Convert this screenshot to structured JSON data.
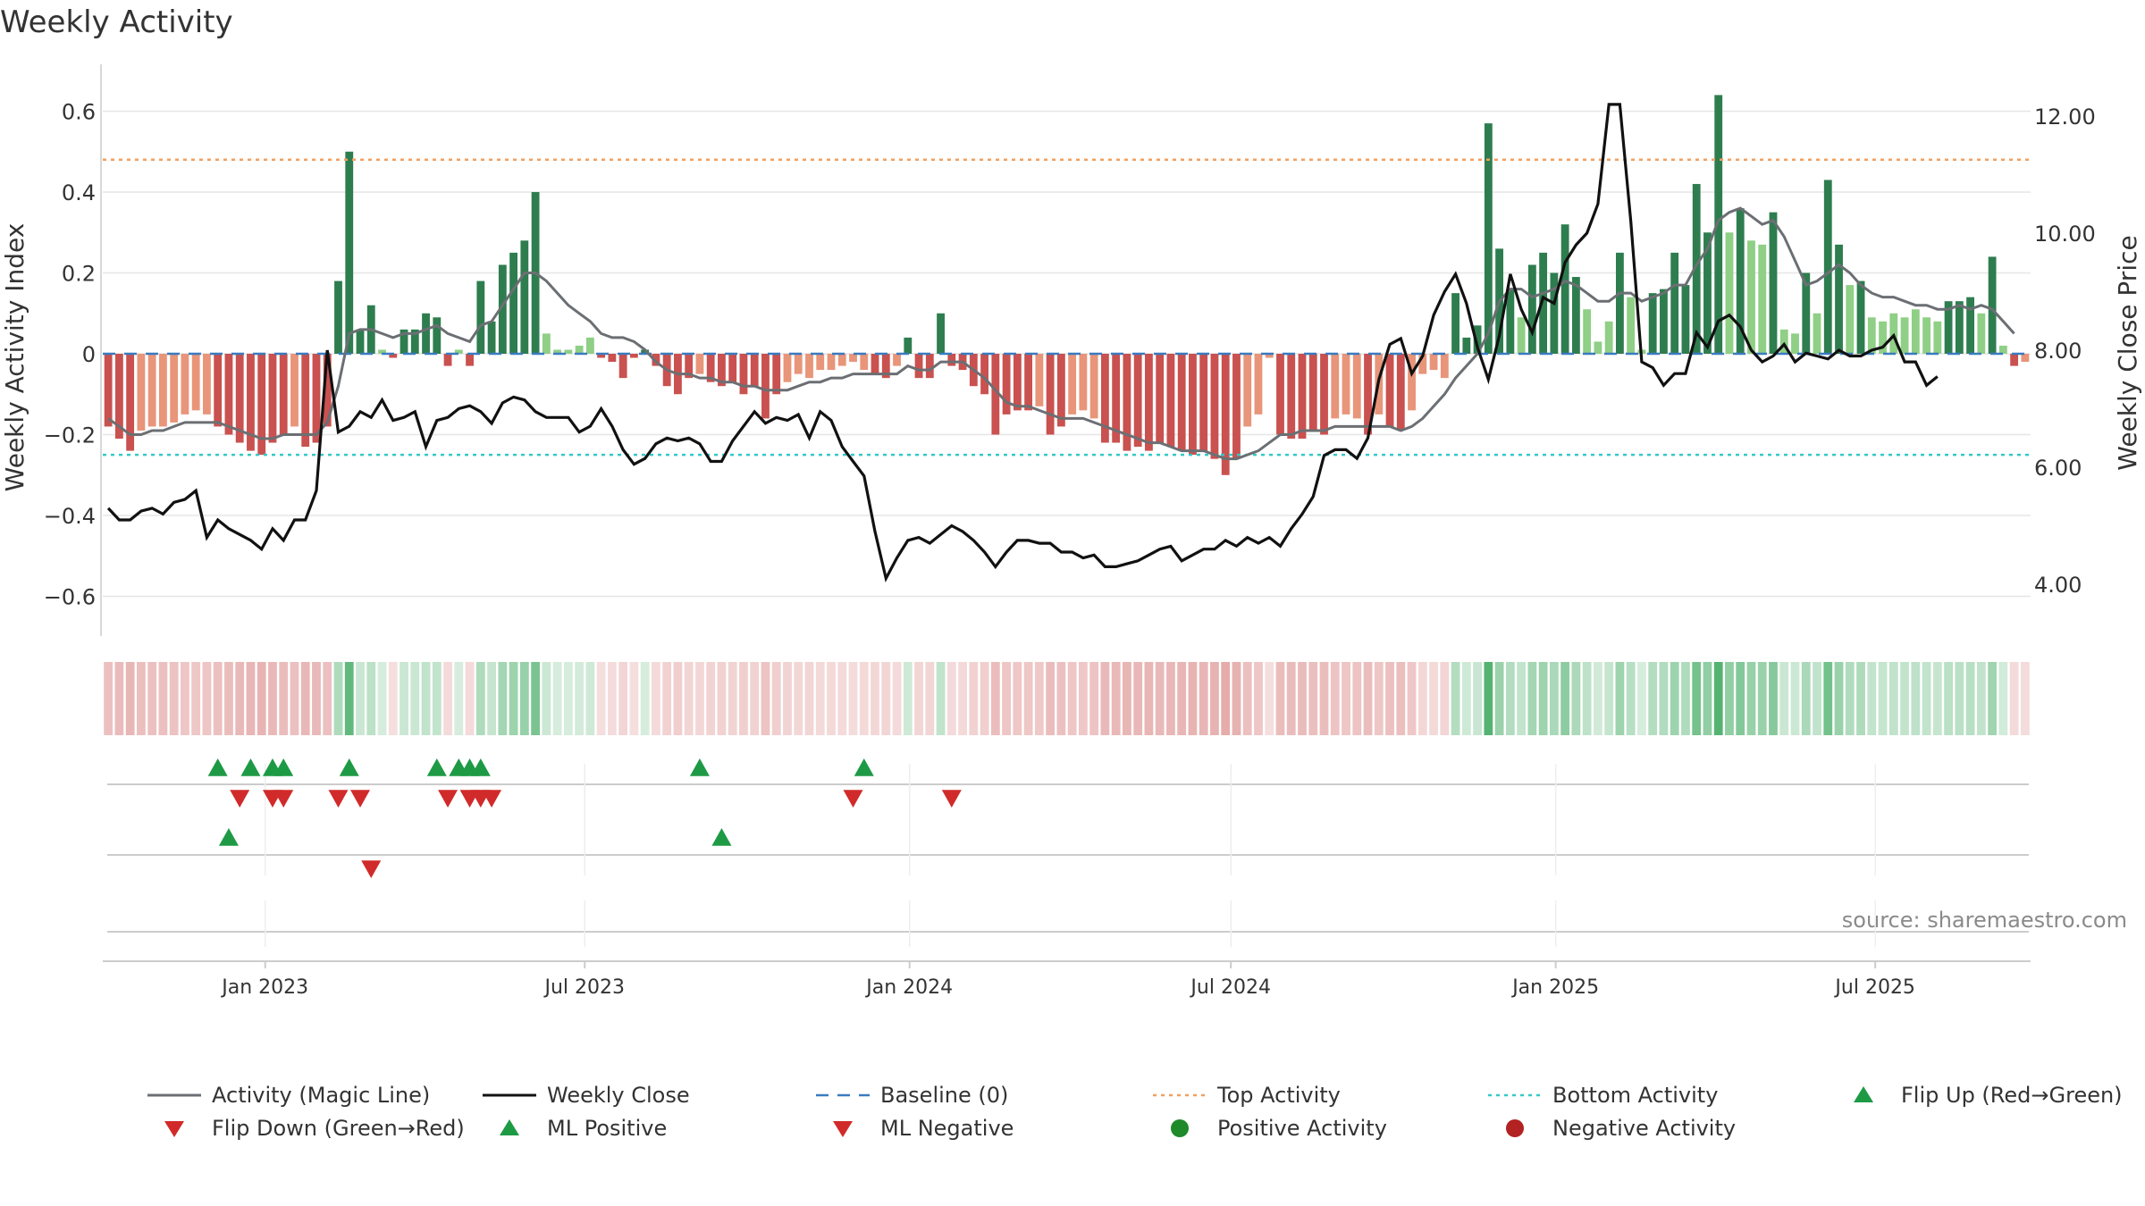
{
  "chart_data": {
    "type": "bar",
    "title": "Weekly Activity",
    "ylabel": "Weekly Activity Index",
    "y2label": "Weekly Close Price",
    "ylim": [
      -0.7,
      0.7
    ],
    "y2lim": [
      2.8,
      13.2
    ],
    "yticks": [
      0.6,
      0.4,
      0.2,
      0,
      -0.2,
      -0.4,
      -0.6
    ],
    "ytick_labels": [
      "0.6",
      "0.4",
      "0.2",
      "0",
      "−0.2",
      "−0.4",
      "−0.6"
    ],
    "y2ticks": [
      12,
      10,
      8,
      6,
      4
    ],
    "y2tick_labels": [
      "12.00",
      "10.00",
      "8.00",
      "6.00",
      "4.00"
    ],
    "x_start": "2022-10-01",
    "x_end": "2025-09-27",
    "xticks": [
      {
        "label": "Jan 2023",
        "date": "2023-01-01"
      },
      {
        "label": "Jul 2023",
        "date": "2023-07-01"
      },
      {
        "label": "Jan 2024",
        "date": "2024-01-01"
      },
      {
        "label": "Jul 2024",
        "date": "2024-07-01"
      },
      {
        "label": "Jan 2025",
        "date": "2025-01-01"
      },
      {
        "label": "Jul 2025",
        "date": "2025-07-01"
      }
    ],
    "top_activity": 0.48,
    "bottom_activity": -0.25,
    "source": "source: sharemaestro.com",
    "activity": [
      -0.18,
      -0.21,
      -0.24,
      -0.19,
      -0.18,
      -0.18,
      -0.17,
      -0.15,
      -0.14,
      -0.15,
      -0.18,
      -0.2,
      -0.22,
      -0.24,
      -0.25,
      -0.22,
      -0.2,
      -0.18,
      -0.23,
      -0.22,
      -0.18,
      0.18,
      0.5,
      0.06,
      0.12,
      0.01,
      -0.01,
      0.06,
      0.06,
      0.1,
      0.09,
      -0.03,
      0.01,
      -0.03,
      0.18,
      0.08,
      0.22,
      0.25,
      0.28,
      0.4,
      0.05,
      0.01,
      0.01,
      0.02,
      0.04,
      -0.01,
      -0.02,
      -0.06,
      -0.01,
      0.01,
      -0.03,
      -0.08,
      -0.1,
      -0.06,
      -0.05,
      -0.07,
      -0.08,
      -0.07,
      -0.1,
      -0.08,
      -0.16,
      -0.1,
      -0.07,
      -0.05,
      -0.06,
      -0.04,
      -0.04,
      -0.03,
      -0.02,
      -0.04,
      -0.05,
      -0.06,
      -0.03,
      0.04,
      -0.06,
      -0.06,
      0.1,
      -0.03,
      -0.04,
      -0.08,
      -0.1,
      -0.2,
      -0.15,
      -0.14,
      -0.14,
      -0.13,
      -0.2,
      -0.18,
      -0.15,
      -0.14,
      -0.16,
      -0.22,
      -0.22,
      -0.24,
      -0.23,
      -0.24,
      -0.22,
      -0.23,
      -0.24,
      -0.25,
      -0.24,
      -0.26,
      -0.3,
      -0.26,
      -0.18,
      -0.15,
      -0.01,
      -0.2,
      -0.21,
      -0.21,
      -0.19,
      -0.2,
      -0.16,
      -0.15,
      -0.16,
      -0.2,
      -0.15,
      -0.18,
      -0.19,
      -0.14,
      -0.05,
      -0.04,
      -0.06,
      0.15,
      0.04,
      0.07,
      0.57,
      0.26,
      0.16,
      0.09,
      0.22,
      0.25,
      0.2,
      0.32,
      0.19,
      0.11,
      0.03,
      0.08,
      0.25,
      0.14,
      0.01,
      0.15,
      0.16,
      0.25,
      0.17,
      0.42,
      0.3,
      0.64,
      0.3,
      0.36,
      0.28,
      0.27,
      0.35,
      0.06,
      0.05,
      0.2,
      0.1,
      0.43,
      0.27,
      0.17,
      0.18,
      0.09,
      0.08,
      0.1,
      0.09,
      0.11,
      0.09,
      0.08,
      0.13,
      0.13,
      0.14,
      0.1,
      0.24,
      0.02,
      -0.03,
      -0.02
    ],
    "magic_line": [
      -0.16,
      -0.18,
      -0.2,
      -0.2,
      -0.19,
      -0.19,
      -0.18,
      -0.17,
      -0.17,
      -0.17,
      -0.17,
      -0.18,
      -0.19,
      -0.2,
      -0.21,
      -0.21,
      -0.2,
      -0.2,
      -0.2,
      -0.2,
      -0.17,
      -0.08,
      0.05,
      0.06,
      0.06,
      0.05,
      0.04,
      0.05,
      0.05,
      0.06,
      0.07,
      0.05,
      0.04,
      0.03,
      0.07,
      0.08,
      0.12,
      0.16,
      0.2,
      0.2,
      0.18,
      0.15,
      0.12,
      0.1,
      0.08,
      0.05,
      0.04,
      0.04,
      0.03,
      0.01,
      -0.02,
      -0.04,
      -0.05,
      -0.05,
      -0.06,
      -0.06,
      -0.07,
      -0.07,
      -0.08,
      -0.08,
      -0.09,
      -0.09,
      -0.09,
      -0.08,
      -0.07,
      -0.07,
      -0.06,
      -0.06,
      -0.05,
      -0.05,
      -0.05,
      -0.05,
      -0.05,
      -0.03,
      -0.04,
      -0.04,
      -0.02,
      -0.02,
      -0.02,
      -0.04,
      -0.06,
      -0.09,
      -0.12,
      -0.13,
      -0.13,
      -0.14,
      -0.15,
      -0.16,
      -0.16,
      -0.16,
      -0.17,
      -0.18,
      -0.19,
      -0.2,
      -0.21,
      -0.22,
      -0.22,
      -0.23,
      -0.24,
      -0.24,
      -0.24,
      -0.25,
      -0.26,
      -0.26,
      -0.25,
      -0.24,
      -0.22,
      -0.2,
      -0.2,
      -0.19,
      -0.19,
      -0.19,
      -0.18,
      -0.18,
      -0.18,
      -0.18,
      -0.18,
      -0.18,
      -0.19,
      -0.18,
      -0.16,
      -0.13,
      -0.1,
      -0.06,
      -0.03,
      0.0,
      0.05,
      0.13,
      0.16,
      0.16,
      0.14,
      0.15,
      0.16,
      0.18,
      0.17,
      0.15,
      0.13,
      0.13,
      0.15,
      0.15,
      0.13,
      0.14,
      0.15,
      0.17,
      0.17,
      0.22,
      0.26,
      0.33,
      0.35,
      0.36,
      0.34,
      0.32,
      0.33,
      0.29,
      0.23,
      0.17,
      0.18,
      0.2,
      0.22,
      0.2,
      0.17,
      0.15,
      0.14,
      0.14,
      0.13,
      0.12,
      0.12,
      0.11,
      0.11,
      0.12,
      0.11,
      0.12,
      0.11,
      0.08,
      0.05
    ],
    "close": [
      5.3,
      5.1,
      5.1,
      5.25,
      5.3,
      5.2,
      5.4,
      5.45,
      5.6,
      4.8,
      5.1,
      4.95,
      4.85,
      4.75,
      4.6,
      4.95,
      4.75,
      5.1,
      5.1,
      5.6,
      8.0,
      6.6,
      6.7,
      6.95,
      6.85,
      7.15,
      6.8,
      6.85,
      6.95,
      6.35,
      6.8,
      6.85,
      7.0,
      7.05,
      6.95,
      6.75,
      7.1,
      7.2,
      7.15,
      6.95,
      6.85,
      6.85,
      6.85,
      6.6,
      6.7,
      7.0,
      6.7,
      6.3,
      6.05,
      6.15,
      6.4,
      6.5,
      6.45,
      6.5,
      6.4,
      6.1,
      6.1,
      6.45,
      6.7,
      6.95,
      6.75,
      6.85,
      6.8,
      6.9,
      6.5,
      6.95,
      6.8,
      6.35,
      6.1,
      5.85,
      4.9,
      4.1,
      4.45,
      4.75,
      4.8,
      4.7,
      4.85,
      5.0,
      4.9,
      4.75,
      4.55,
      4.3,
      4.55,
      4.75,
      4.75,
      4.7,
      4.7,
      4.55,
      4.55,
      4.45,
      4.5,
      4.3,
      4.3,
      4.35,
      4.4,
      4.5,
      4.6,
      4.65,
      4.4,
      4.5,
      4.6,
      4.6,
      4.75,
      4.65,
      4.8,
      4.7,
      4.8,
      4.65,
      4.95,
      5.2,
      5.5,
      6.2,
      6.3,
      6.3,
      6.15,
      6.5,
      7.5,
      8.1,
      8.2,
      7.6,
      7.9,
      8.6,
      9.0,
      9.3,
      8.8,
      8.05,
      7.5,
      8.25,
      9.3,
      8.7,
      8.3,
      8.9,
      8.8,
      9.5,
      9.8,
      10.0,
      10.5,
      12.2,
      12.2,
      10.2,
      7.8,
      7.7,
      7.4,
      7.6,
      7.6,
      8.3,
      8.05,
      8.5,
      8.6,
      8.4,
      8.0,
      7.8,
      7.9,
      8.1,
      7.8,
      7.95,
      7.9,
      7.85,
      8.0,
      7.9,
      7.9,
      8.0,
      8.05,
      8.25,
      7.8,
      7.8,
      7.4,
      7.55
    ]
  },
  "heat_strip": {
    "label": "weekly activity heat strip"
  },
  "markers": {
    "flip_up": [
      10,
      13,
      15,
      16,
      22,
      30,
      32,
      33,
      34,
      54,
      69
    ],
    "flip_down": [
      12,
      15,
      16,
      21,
      23,
      31,
      33,
      34,
      35,
      68,
      77
    ],
    "ml_positive": [
      11,
      56
    ],
    "ml_negative": [
      24
    ]
  },
  "legend": [
    {
      "key": "magic",
      "label": "Activity (Magic Line)"
    },
    {
      "key": "close",
      "label": "Weekly Close"
    },
    {
      "key": "baseline",
      "label": "Baseline (0)"
    },
    {
      "key": "top",
      "label": "Top Activity"
    },
    {
      "key": "bottom",
      "label": "Bottom Activity"
    },
    {
      "key": "flipup",
      "label": "Flip Up (Red→Green)"
    },
    {
      "key": "flipdown",
      "label": "Flip Down (Green→Red)"
    },
    {
      "key": "mlpos",
      "label": "ML Positive"
    },
    {
      "key": "mlneg",
      "label": "ML Negative"
    },
    {
      "key": "pos",
      "label": "Positive Activity"
    },
    {
      "key": "neg",
      "label": "Negative Activity"
    }
  ],
  "colors": {
    "pos_strong": "#2e7d4f",
    "pos_mid": "#4caf6a",
    "pos_light": "#8fcf86",
    "neg_strong": "#c9514f",
    "neg_light": "#e8957a",
    "magic": "#6b6f73",
    "close": "#111111",
    "baseline": "#3a7bbf",
    "top": "#f0a060",
    "bottom": "#33c9c9",
    "flip_up": "#1e9a45",
    "flip_down": "#d12a2a",
    "pos_dot": "#1e8a2a",
    "neg_dot": "#b22222",
    "grid": "#e6e6e6",
    "axis": "#cccccc",
    "text": "#333333",
    "source": "#8a8a8a"
  }
}
